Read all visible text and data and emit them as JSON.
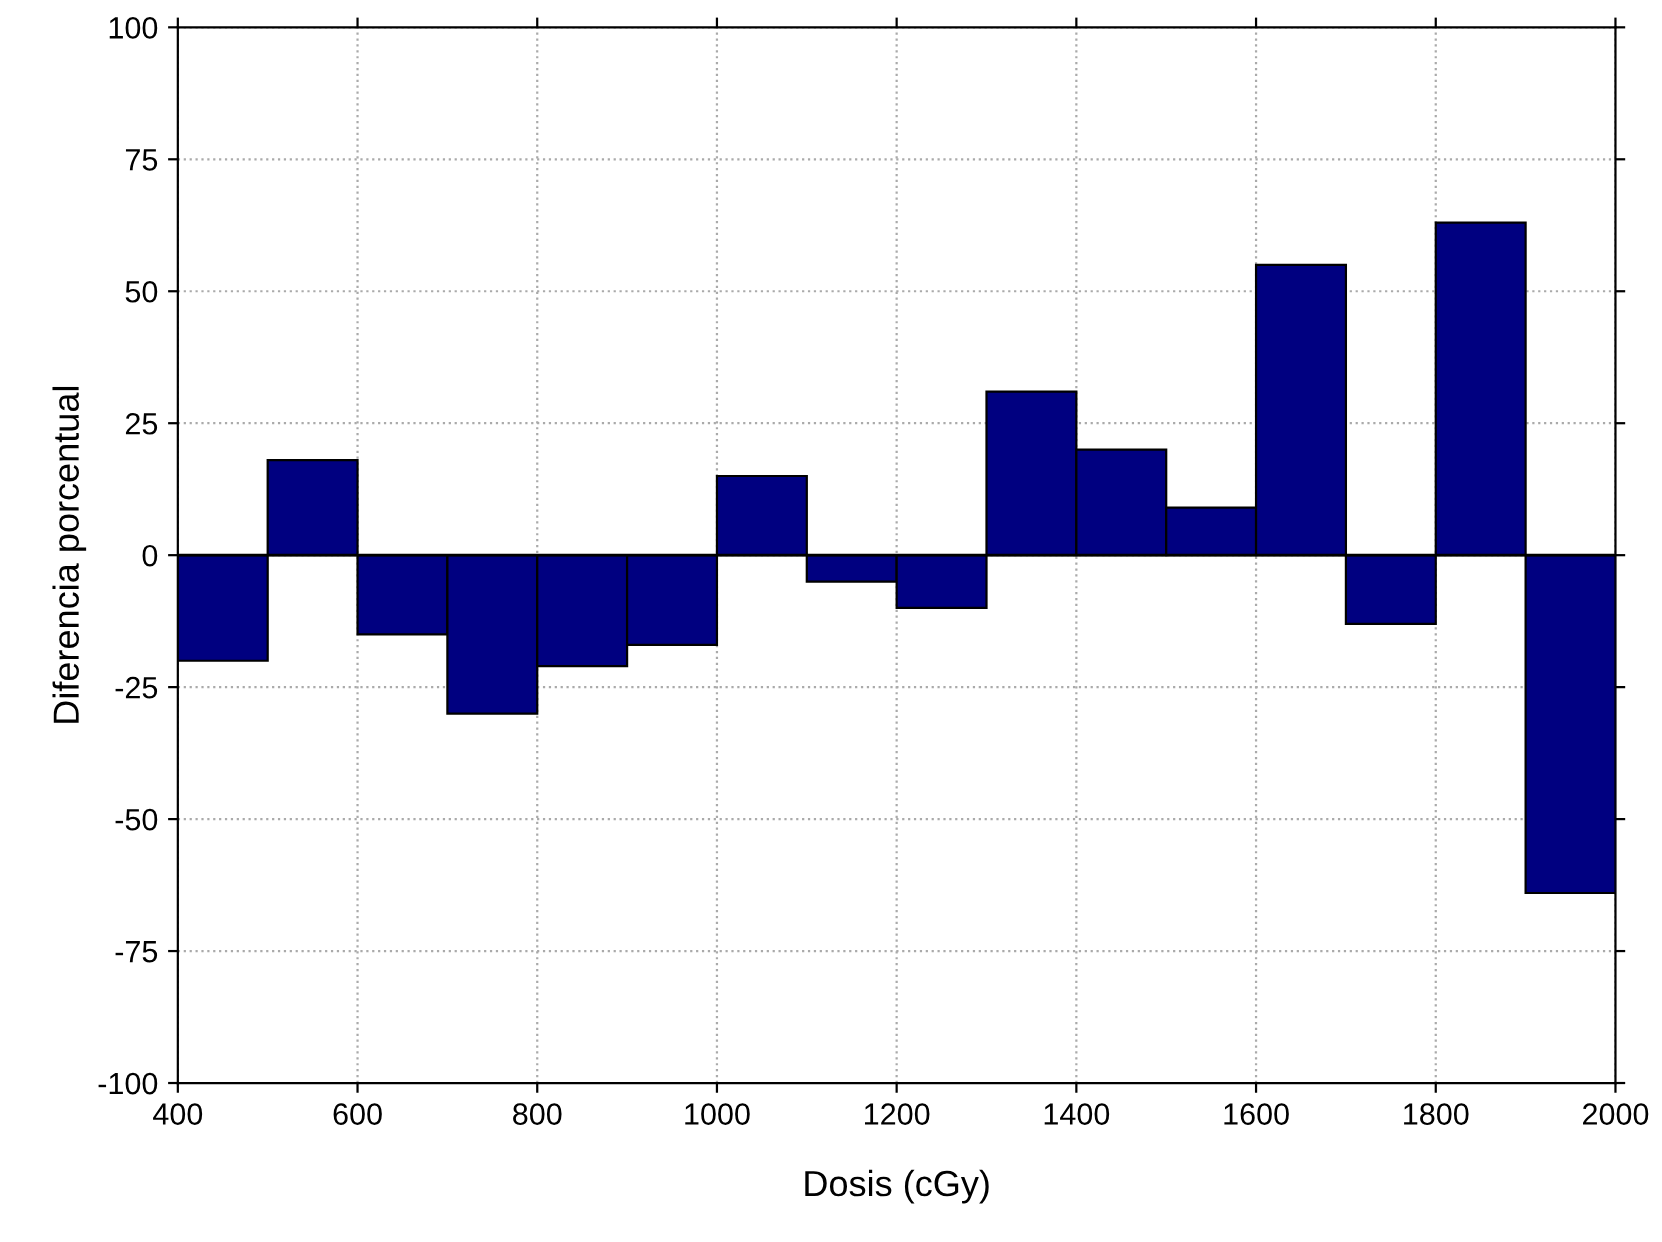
{
  "chart_data": {
    "type": "histogram",
    "xlabel": "Dosis (cGy)",
    "ylabel": "Diferencia porcentual",
    "bins": [
      400,
      500,
      600,
      700,
      800,
      900,
      1000,
      1100,
      1200,
      1300,
      1400,
      1500,
      1600,
      1700,
      1800,
      1900,
      2000
    ],
    "values": [
      -20,
      18,
      -15,
      -30,
      -21,
      -17,
      15,
      -5,
      -10,
      31,
      20,
      9,
      55,
      -13,
      63,
      -64
    ],
    "color": "#000080",
    "xlim": [
      400,
      2000
    ],
    "xticks": [
      400,
      600,
      800,
      1000,
      1200,
      1400,
      1600,
      1800,
      2000
    ],
    "ylim": [
      -100,
      100
    ],
    "yticks": [
      -100,
      -75,
      -50,
      -25,
      0,
      25,
      50,
      75,
      100
    ],
    "ref_lines": [
      {
        "axis": "y",
        "value": 0,
        "color": "#000000"
      }
    ],
    "grid": true
  }
}
